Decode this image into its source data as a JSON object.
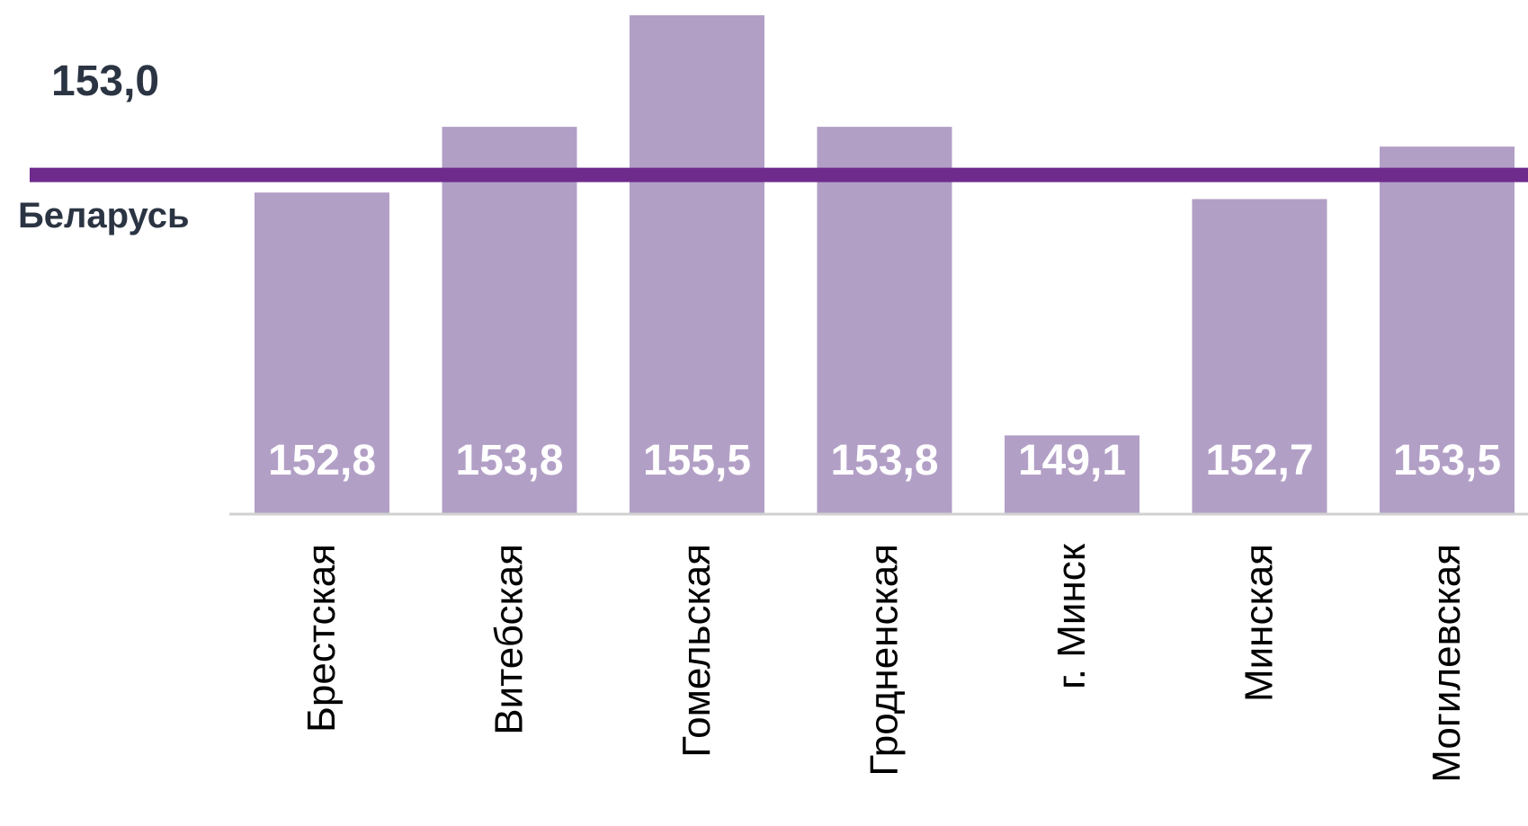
{
  "chart_data": {
    "type": "bar",
    "categories": [
      "Брестская",
      "Витебская",
      "Гомельская",
      "Гродненская",
      "г. Минск",
      "Минская",
      "Могилевская"
    ],
    "values": [
      152.8,
      153.8,
      155.5,
      153.8,
      149.1,
      152.7,
      153.5
    ],
    "value_labels": [
      "152,8",
      "153,8",
      "155,5",
      "153,8",
      "149,1",
      "152,7",
      "153,5"
    ],
    "reference_line": {
      "value": 153.0,
      "value_label": "153,0",
      "label": "Беларусь"
    },
    "colors": {
      "bar": "#b29fc6",
      "reference_line": "#6e2b8c",
      "baseline": "#d0d0d0"
    },
    "title": "",
    "xlabel": "",
    "ylabel": "",
    "grid": false,
    "legend": "none"
  }
}
